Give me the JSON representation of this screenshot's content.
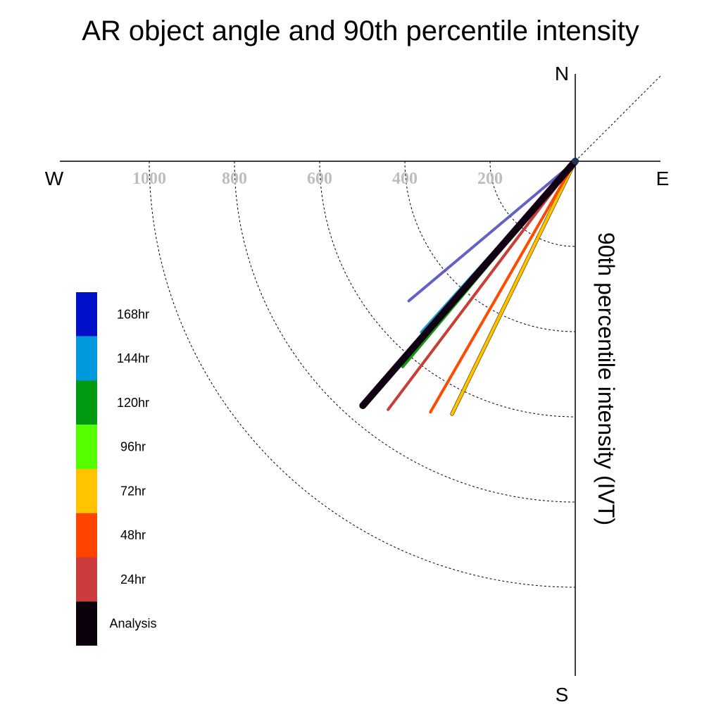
{
  "chart_data": {
    "type": "polar-line",
    "title": "AR object angle and 90th percentile intensity",
    "radial_label": "90th percentile intensity (IVT)",
    "compass": {
      "north": "N",
      "east": "E",
      "south": "S",
      "west": "W"
    },
    "radial_ticks": [
      200,
      400,
      600,
      800,
      1000
    ],
    "radial_tick_labels": [
      "200",
      "400",
      "600",
      "800",
      "1000"
    ],
    "radial_max": 1200,
    "grid": true,
    "legend_position": "left",
    "series": [
      {
        "name": "168hr",
        "color": "#5050c0",
        "angle_deg": 230,
        "intensity": 510,
        "width": 4
      },
      {
        "name": "144hr",
        "color": "#1e9ad6",
        "angle_deg": 222,
        "intensity": 540,
        "width": 4
      },
      {
        "name": "120hr",
        "color": "#119911",
        "angle_deg": 220,
        "intensity": 630,
        "width": 4
      },
      {
        "name": "96hr",
        "color": "#55ee11",
        "angle_deg": 217,
        "intensity": 710,
        "width": 4
      },
      {
        "name": "72hr",
        "color": "#ffc400",
        "angle_deg": 206,
        "intensity": 660,
        "width": 4
      },
      {
        "name": "48hr",
        "color": "#ff4a00",
        "angle_deg": 210,
        "intensity": 680,
        "width": 4
      },
      {
        "name": "24hr",
        "color": "#cc3c3c",
        "angle_deg": 217,
        "intensity": 730,
        "width": 4
      },
      {
        "name": "Analysis",
        "color": "#110011",
        "angle_deg": 221,
        "intensity": 760,
        "width": 10
      }
    ],
    "legend": [
      {
        "label": "168hr",
        "color": "#0010c8"
      },
      {
        "label": "144hr",
        "color": "#0099dd"
      },
      {
        "label": "120hr",
        "color": "#009911"
      },
      {
        "label": "96hr",
        "color": "#55ff00"
      },
      {
        "label": "72hr",
        "color": "#ffc400"
      },
      {
        "label": "48hr",
        "color": "#ff4400"
      },
      {
        "label": "24hr",
        "color": "#cc3c3c"
      },
      {
        "label": "Analysis",
        "color": "#0c000c"
      }
    ]
  }
}
